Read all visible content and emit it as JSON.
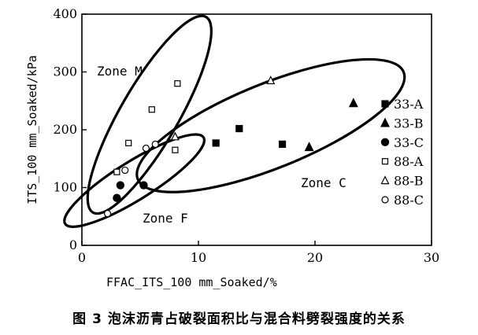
{
  "caption": "图 3   泡沫沥青占破裂面积比与混合料劈裂强度的关系",
  "chart_data": {
    "type": "scatter",
    "xlabel": "FFAC_ITS_100 mm_Soaked/%",
    "ylabel": "ITS_100 mm_Soaked/kPa",
    "xlim": [
      0,
      30
    ],
    "ylim": [
      0,
      400
    ],
    "xticks": [
      0,
      10,
      20,
      30
    ],
    "yticks": [
      0,
      100,
      200,
      300,
      400
    ],
    "grid": false,
    "legend_position": "right",
    "series": [
      {
        "name": "33-A",
        "marker": "square-filled",
        "points": [
          [
            11.5,
            177
          ],
          [
            13.5,
            202
          ],
          [
            17.2,
            175
          ]
        ]
      },
      {
        "name": "33-B",
        "marker": "triangle-filled",
        "points": [
          [
            19.5,
            170
          ],
          [
            23.3,
            246
          ]
        ]
      },
      {
        "name": "33-C",
        "marker": "circle-filled",
        "points": [
          [
            3.3,
            104
          ],
          [
            5.3,
            104
          ],
          [
            3.0,
            82
          ]
        ]
      },
      {
        "name": "88-A",
        "marker": "square-open",
        "points": [
          [
            4.0,
            177
          ],
          [
            6.0,
            235
          ],
          [
            8.2,
            280
          ],
          [
            8.0,
            165
          ],
          [
            3.0,
            127
          ]
        ]
      },
      {
        "name": "88-B",
        "marker": "triangle-open",
        "points": [
          [
            16.2,
            285
          ],
          [
            8.0,
            188
          ]
        ]
      },
      {
        "name": "88-C",
        "marker": "circle-open",
        "points": [
          [
            2.2,
            55
          ],
          [
            3.7,
            130
          ],
          [
            5.5,
            168
          ],
          [
            6.3,
            175
          ]
        ]
      }
    ],
    "annotations": [
      "Zone M",
      "Zone C",
      "Zone F"
    ],
    "zones": [
      {
        "name": "Zone M",
        "cx": 5.8,
        "cy": 226,
        "rx": 9.7,
        "ry": 50,
        "angle_deg": -60
      },
      {
        "name": "Zone C",
        "cx": 16.2,
        "cy": 207,
        "rx": 12.3,
        "ry": 73,
        "angle_deg": -22
      },
      {
        "name": "Zone F",
        "cx": 4.5,
        "cy": 112,
        "rx": 7.0,
        "ry": 33,
        "angle_deg": -32
      }
    ]
  }
}
